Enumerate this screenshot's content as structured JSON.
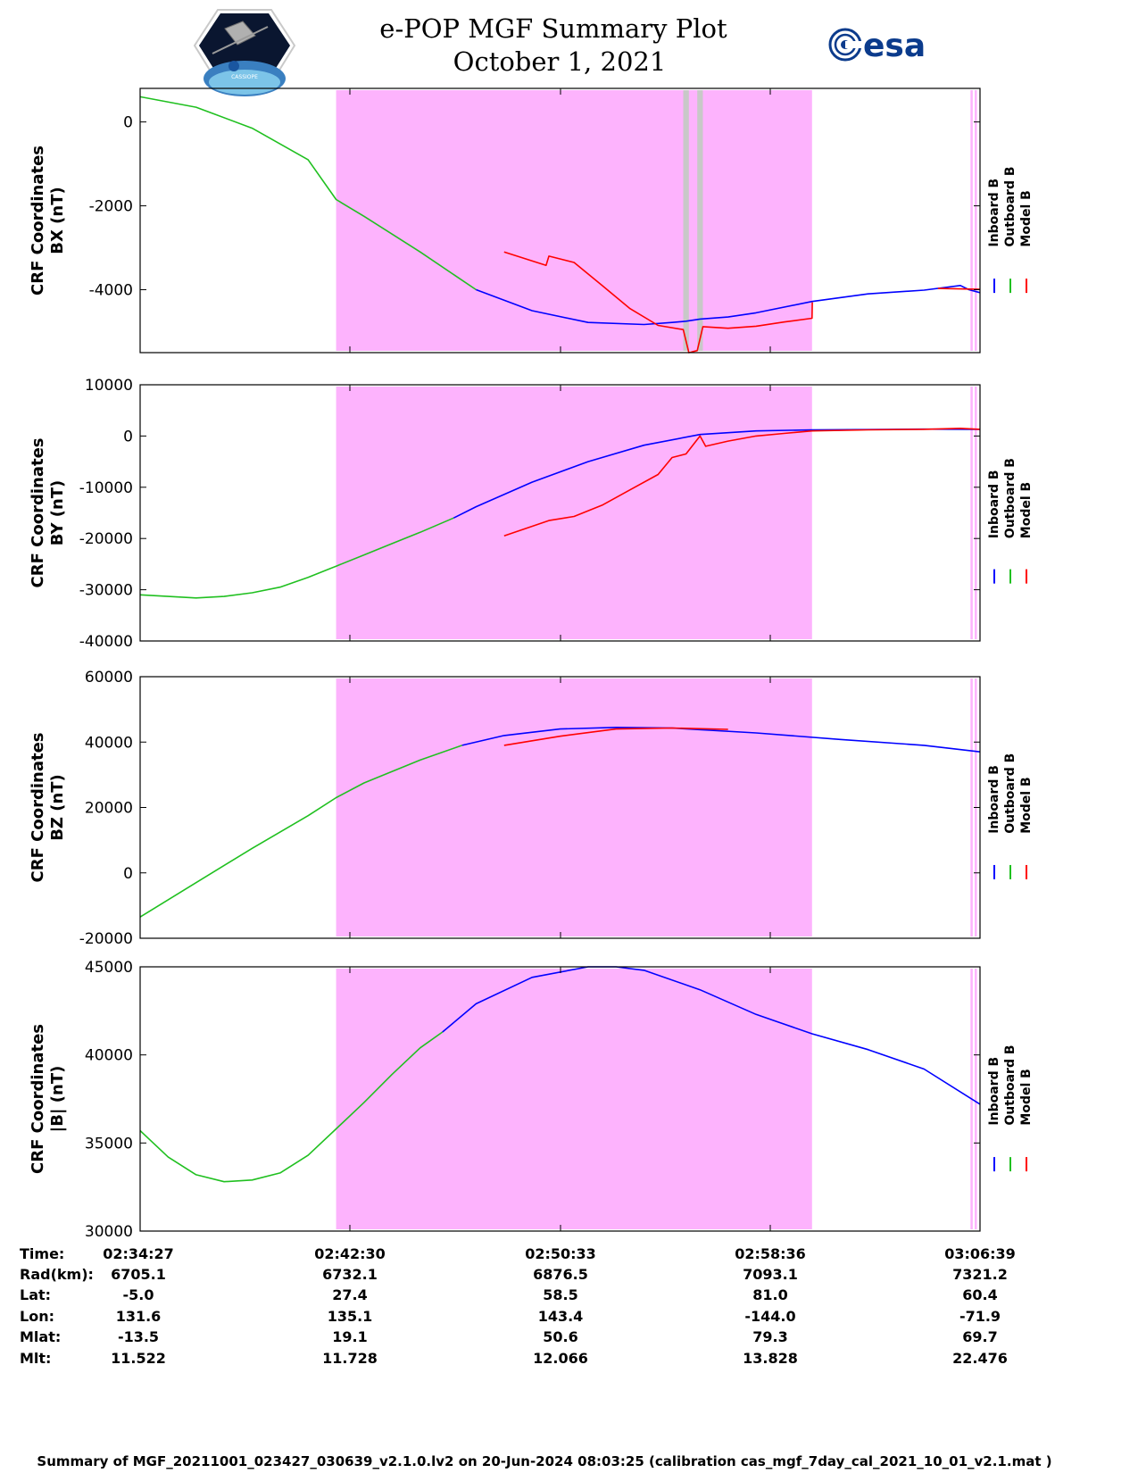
{
  "header": {
    "title": "e-POP MGF Summary Plot",
    "date": "October 1, 2021",
    "esa_logo_text": "esa"
  },
  "colors": {
    "highlight": "#fdb3fd",
    "gap": "#c8c8c8",
    "inboard": "#0000ff",
    "outboard": "#20c020",
    "model": "#ff0000"
  },
  "legend": {
    "inboard": "Inboard B",
    "outboard": "Outboard B",
    "model": "Model B"
  },
  "chart_data": [
    {
      "type": "line",
      "id": "bx",
      "ylabel_line1": "CRF Coordinates",
      "ylabel_line2": "BX (nT)",
      "ylim": [
        -5500,
        800
      ],
      "yticks": [
        0,
        -2000,
        -4000
      ],
      "ytick_labels": [
        "0",
        "-2000",
        "-4000"
      ],
      "x_range_min": [
        0,
        30
      ],
      "highlight_min": [
        7.0,
        24.0
      ],
      "gaps_min": [
        [
          19.4,
          19.6
        ],
        [
          19.9,
          20.1
        ]
      ],
      "thin_lines_min": [
        29.7,
        29.85
      ],
      "series": [
        {
          "name": "Outboard B",
          "color_key": "outboard",
          "x": [
            0,
            2,
            4,
            6,
            7,
            8,
            10,
            12
          ],
          "y": [
            600,
            350,
            -150,
            -900,
            -1850,
            -2250,
            -3100,
            -4000
          ]
        },
        {
          "name": "Inboard B",
          "color_key": "inboard",
          "x": [
            12,
            14,
            16,
            18,
            19,
            19.5,
            20,
            21,
            22,
            24,
            26,
            28,
            29.3,
            29.6,
            30
          ],
          "y": [
            -4000,
            -4500,
            -4780,
            -4830,
            -4780,
            -4750,
            -4700,
            -4650,
            -4550,
            -4280,
            -4100,
            -4010,
            -3900,
            -4000,
            -4070
          ]
        },
        {
          "name": "Model B",
          "color_key": "model",
          "x": [
            13,
            14.5,
            14.6,
            15.5,
            16.5,
            17.5,
            18.5,
            19.4,
            19.6,
            19.9,
            20.1,
            21,
            22,
            23,
            24,
            24.01
          ],
          "y": [
            -3100,
            -3420,
            -3200,
            -3350,
            -3900,
            -4450,
            -4850,
            -4950,
            -5500,
            -5450,
            -4880,
            -4920,
            -4870,
            -4770,
            -4680,
            -4300
          ]
        },
        {
          "name": "Model B (end)",
          "color_key": "model",
          "x": [
            28.5,
            30
          ],
          "y": [
            -3970,
            -3990
          ]
        }
      ]
    },
    {
      "type": "line",
      "id": "by",
      "ylabel_line1": "CRF Coordinates",
      "ylabel_line2": "BY (nT)",
      "ylim": [
        -40000,
        10000
      ],
      "yticks": [
        10000,
        0,
        -10000,
        -20000,
        -30000,
        -40000
      ],
      "ytick_labels": [
        "10000",
        "0",
        "-10000",
        "-20000",
        "-30000",
        "-40000"
      ],
      "x_range_min": [
        0,
        30
      ],
      "highlight_min": [
        7.0,
        24.0
      ],
      "gaps_min": [],
      "thin_lines_min": [
        29.7,
        29.85
      ],
      "series": [
        {
          "name": "Outboard B",
          "color_key": "outboard",
          "x": [
            0,
            1,
            2,
            3,
            4,
            5,
            6,
            7,
            8,
            9,
            10,
            11.2
          ],
          "y": [
            -31000,
            -31300,
            -31600,
            -31300,
            -30600,
            -29500,
            -27600,
            -25400,
            -23200,
            -21000,
            -18800,
            -16000
          ]
        },
        {
          "name": "Inboard B",
          "color_key": "inboard",
          "x": [
            11.2,
            12,
            14,
            16,
            18,
            20,
            22,
            24,
            26,
            28,
            30
          ],
          "y": [
            -16000,
            -13800,
            -9000,
            -5000,
            -1800,
            300,
            1000,
            1200,
            1250,
            1350,
            1300
          ]
        },
        {
          "name": "Model B",
          "color_key": "model",
          "x": [
            13,
            14.6,
            15.5,
            16.5,
            17.5,
            18.5,
            19,
            19.5,
            20,
            20.2,
            21,
            22,
            23,
            24,
            26,
            28,
            29.3,
            30
          ],
          "y": [
            -19500,
            -16500,
            -15700,
            -13500,
            -10500,
            -7500,
            -4200,
            -3500,
            0,
            -2000,
            -1000,
            0,
            500,
            1000,
            1200,
            1300,
            1500,
            1300
          ]
        }
      ]
    },
    {
      "type": "line",
      "id": "bz",
      "ylabel_line1": "CRF Coordinates",
      "ylabel_line2": "BZ (nT)",
      "ylim": [
        -20000,
        60000
      ],
      "yticks": [
        60000,
        40000,
        20000,
        0,
        -20000
      ],
      "ytick_labels": [
        "60000",
        "40000",
        "20000",
        "0",
        "-20000"
      ],
      "x_range_min": [
        0,
        30
      ],
      "highlight_min": [
        7.0,
        24.0
      ],
      "gaps_min": [],
      "thin_lines_min": [
        29.7,
        29.85
      ],
      "series": [
        {
          "name": "Outboard B",
          "color_key": "outboard",
          "x": [
            0,
            2,
            4,
            6,
            7,
            8,
            10,
            11.5
          ],
          "y": [
            -13500,
            -3000,
            7500,
            17500,
            23000,
            27500,
            34500,
            39000
          ]
        },
        {
          "name": "Inboard B",
          "color_key": "inboard",
          "x": [
            11.5,
            13,
            15,
            17,
            19,
            22,
            25,
            28,
            30
          ],
          "y": [
            39000,
            42000,
            44000,
            44500,
            44300,
            42800,
            40800,
            39000,
            37000
          ]
        },
        {
          "name": "Model B",
          "color_key": "model",
          "x": [
            13,
            15,
            17,
            19,
            21
          ],
          "y": [
            39000,
            41800,
            44000,
            44300,
            43900
          ]
        }
      ]
    },
    {
      "type": "line",
      "id": "bmag",
      "ylabel_line1": "CRF Coordinates",
      "ylabel_line2": "|B| (nT)",
      "ylim": [
        30000,
        45000
      ],
      "yticks": [
        45000,
        40000,
        35000,
        30000
      ],
      "ytick_labels": [
        "45000",
        "40000",
        "35000",
        "30000"
      ],
      "x_range_min": [
        0,
        30
      ],
      "highlight_min": [
        7.0,
        24.0
      ],
      "gaps_min": [],
      "thin_lines_min": [
        29.7,
        29.85
      ],
      "series": [
        {
          "name": "Outboard B",
          "color_key": "outboard",
          "x": [
            0,
            1,
            2,
            3,
            4,
            5,
            6,
            7,
            8,
            9,
            10,
            10.8
          ],
          "y": [
            35700,
            34200,
            33200,
            32800,
            32900,
            33300,
            34300,
            35800,
            37300,
            38900,
            40400,
            41300
          ]
        },
        {
          "name": "Inboard B",
          "color_key": "inboard",
          "x": [
            10.8,
            12,
            14,
            16,
            17,
            18,
            20,
            22,
            24,
            26,
            28,
            30
          ],
          "y": [
            41300,
            42900,
            44400,
            45000,
            45000,
            44800,
            43700,
            42300,
            41200,
            40300,
            39200,
            37200
          ]
        }
      ]
    }
  ],
  "time_table": {
    "row_labels": [
      "Time:",
      "Rad(km):",
      "Lat:",
      "Lon:",
      "Mlat:",
      "Mlt:"
    ],
    "columns": [
      {
        "values": [
          "02:34:27",
          "6705.1",
          "-5.0",
          "131.6",
          "-13.5",
          "11.522"
        ]
      },
      {
        "values": [
          "02:42:30",
          "6732.1",
          "27.4",
          "135.1",
          "19.1",
          "11.728"
        ]
      },
      {
        "values": [
          "02:50:33",
          "6876.5",
          "58.5",
          "143.4",
          "50.6",
          "12.066"
        ]
      },
      {
        "values": [
          "02:58:36",
          "7093.1",
          "81.0",
          "-144.0",
          "79.3",
          "13.828"
        ]
      },
      {
        "values": [
          "03:06:39",
          "7321.2",
          "60.4",
          "-71.9",
          "69.7",
          "22.476"
        ]
      }
    ]
  },
  "footer": "Summary of MGF_20211001_023427_030639_v2.1.0.lv2 on 20-Jun-2024 08:03:25 (calibration cas_mgf_7day_cal_2021_10_01_v2.1.mat )"
}
